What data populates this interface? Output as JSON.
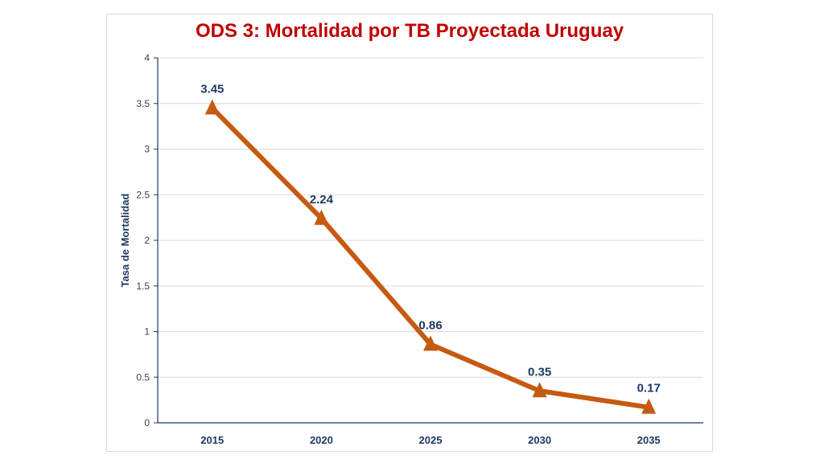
{
  "chart_data": {
    "type": "line",
    "title": "ODS 3: Mortalidad por TB Proyectada Uruguay",
    "xlabel": "",
    "ylabel": "Tasa de Mortalidad",
    "categories": [
      "2015",
      "2020",
      "2025",
      "2030",
      "2035"
    ],
    "series": [
      {
        "values": [
          3.45,
          2.24,
          0.86,
          0.35,
          0.17
        ],
        "labels": [
          "3.45",
          "2.24",
          "0.86",
          "0.35",
          "0.17"
        ]
      }
    ],
    "ylim": [
      0,
      4
    ],
    "yticks": [
      "0",
      "0.5",
      "1",
      "1.5",
      "2",
      "2.5",
      "3",
      "3.5",
      "4"
    ],
    "grid": true,
    "legend": "none",
    "colors": {
      "line": "#c55a11",
      "title": "#c00000",
      "labels": "#1f3864"
    }
  }
}
